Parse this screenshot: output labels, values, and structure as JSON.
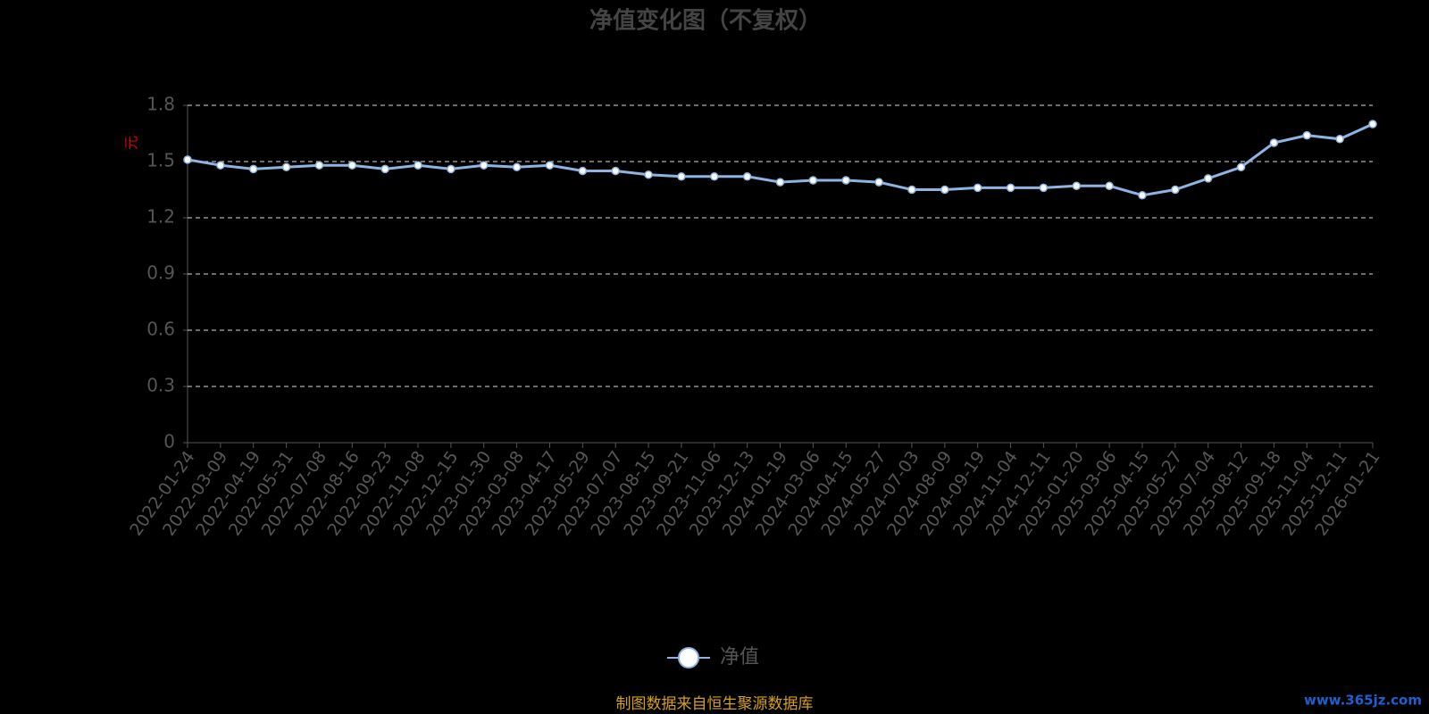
{
  "chart_data": {
    "type": "line",
    "title": "净值变化图（不复权）",
    "y_label": "元",
    "categories": [
      "2022-01-24",
      "2022-03-09",
      "2022-04-19",
      "2022-05-31",
      "2022-07-08",
      "2022-08-16",
      "2022-09-23",
      "2022-11-08",
      "2022-12-15",
      "2023-01-30",
      "2023-03-08",
      "2023-04-17",
      "2023-05-29",
      "2023-07-07",
      "2023-08-15",
      "2023-09-21",
      "2023-11-06",
      "2023-12-13",
      "2024-01-19",
      "2024-03-06",
      "2024-04-15",
      "2024-05-27",
      "2024-07-03",
      "2024-08-09",
      "2024-09-19",
      "2024-11-04",
      "2024-12-11",
      "2025-01-20",
      "2025-03-06",
      "2025-04-15",
      "2025-05-27",
      "2025-07-04",
      "2025-08-12",
      "2025-09-18",
      "2025-11-04",
      "2025-12-11",
      "2026-01-21"
    ],
    "series": [
      {
        "name": "净值",
        "color": "#8db4e2",
        "values": [
          1.51,
          1.48,
          1.46,
          1.47,
          1.48,
          1.48,
          1.46,
          1.48,
          1.46,
          1.48,
          1.47,
          1.48,
          1.45,
          1.45,
          1.43,
          1.42,
          1.42,
          1.42,
          1.39,
          1.4,
          1.4,
          1.39,
          1.35,
          1.35,
          1.36,
          1.36,
          1.36,
          1.37,
          1.37,
          1.32,
          1.35,
          1.41,
          1.47,
          1.6,
          1.64,
          1.62,
          1.7
        ]
      }
    ],
    "ylim": [
      0,
      1.8
    ],
    "yticks": [
      0,
      0.3,
      0.6,
      0.9,
      1.2,
      1.5,
      1.8
    ],
    "grid": true,
    "source": "制图数据来自恒生聚源数据库",
    "watermark": "www.365jz.com"
  }
}
